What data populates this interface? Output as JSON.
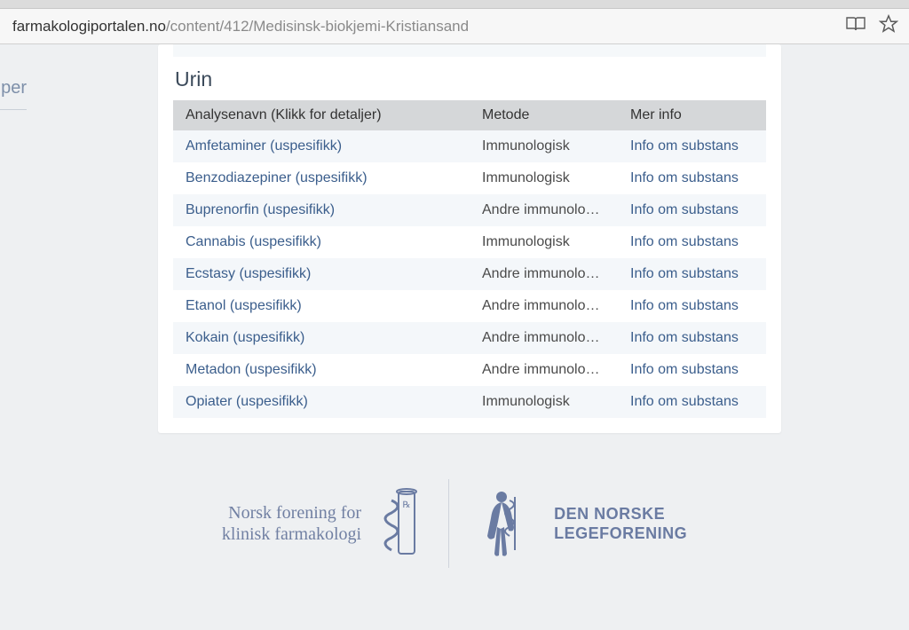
{
  "browser": {
    "url_host": "farmakologiportalen.no",
    "url_path": "/content/412/Medisinsk-biokjemi-Kristiansand"
  },
  "sidebar": {
    "fragment": "per"
  },
  "section": {
    "title": "Urin"
  },
  "table": {
    "headers": {
      "name": "Analysenavn (Klikk for detaljer)",
      "method": "Metode",
      "info": "Mer info"
    },
    "rows": [
      {
        "name": "Amfetaminer (uspesifikk)",
        "method": "Immunologisk",
        "info": "Info om substans"
      },
      {
        "name": "Benzodiazepiner (uspesifikk)",
        "method": "Immunologisk",
        "info": "Info om substans"
      },
      {
        "name": "Buprenorfin (uspesifikk)",
        "method": "Andre immunologi...",
        "info": "Info om substans"
      },
      {
        "name": "Cannabis (uspesifikk)",
        "method": "Immunologisk",
        "info": "Info om substans"
      },
      {
        "name": "Ecstasy (uspesifikk)",
        "method": "Andre immunologi...",
        "info": "Info om substans"
      },
      {
        "name": "Etanol (uspesifikk)",
        "method": "Andre immunologi...",
        "info": "Info om substans"
      },
      {
        "name": "Kokain (uspesifikk)",
        "method": "Andre immunologi...",
        "info": "Info om substans"
      },
      {
        "name": "Metadon (uspesifikk)",
        "method": "Andre immunologi...",
        "info": "Info om substans"
      },
      {
        "name": "Opiater (uspesifikk)",
        "method": "Immunologisk",
        "info": "Info om substans"
      }
    ]
  },
  "footer": {
    "left_line1": "Norsk forening for",
    "left_line2": "klinisk farmakologi",
    "right_line1": "DEN NORSKE",
    "right_line2": "LEGEFORENING"
  },
  "colors": {
    "link": "#3b5e8c",
    "header_bg": "#d5d7d9",
    "row_alt_bg": "#f4f7fa",
    "footer_accent": "#6a7ba2"
  }
}
